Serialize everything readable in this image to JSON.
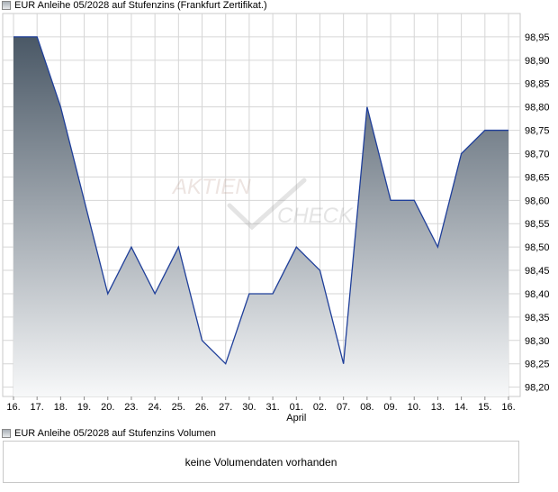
{
  "legend": {
    "price_label": "EUR Anleihe 05/2028 auf Stufenzins (Frankfurt Zertifikat.)",
    "volume_label": "EUR Anleihe 05/2028 auf Stufenzins Volumen"
  },
  "volume_panel": {
    "message": "keine Volumendaten vorhanden"
  },
  "watermark": {
    "line1": "AKTIEN",
    "line2": "CHECK"
  },
  "colors": {
    "line": "#1f3f9a",
    "fill_top": "#4a5866",
    "fill_bottom": "#f7f8f9",
    "grid": "#d6d6d6"
  },
  "chart_data": {
    "type": "area",
    "x": [
      "16.",
      "17.",
      "18.",
      "19.",
      "20.",
      "23.",
      "24.",
      "25.",
      "26.",
      "27.",
      "30.",
      "31.",
      "01.",
      "02.",
      "07.",
      "08.",
      "09.",
      "10.",
      "13.",
      "14.",
      "15.",
      "16."
    ],
    "values": [
      98.95,
      98.95,
      98.8,
      98.6,
      98.4,
      98.5,
      98.4,
      98.5,
      98.3,
      98.25,
      98.4,
      98.4,
      98.5,
      98.45,
      98.25,
      98.8,
      98.6,
      98.6,
      98.5,
      98.7,
      98.75,
      98.75
    ],
    "month_label": {
      "text": "April",
      "at_index": 12
    },
    "y_ticks": [
      "98,20",
      "98,25",
      "98,30",
      "98,35",
      "98,40",
      "98,45",
      "98,50",
      "98,55",
      "98,60",
      "98,65",
      "98,70",
      "98,75",
      "98,80",
      "98,85",
      "98,90",
      "98,95"
    ],
    "ylim": [
      98.18,
      99.0
    ],
    "grid": true,
    "y_axis_side": "right"
  }
}
